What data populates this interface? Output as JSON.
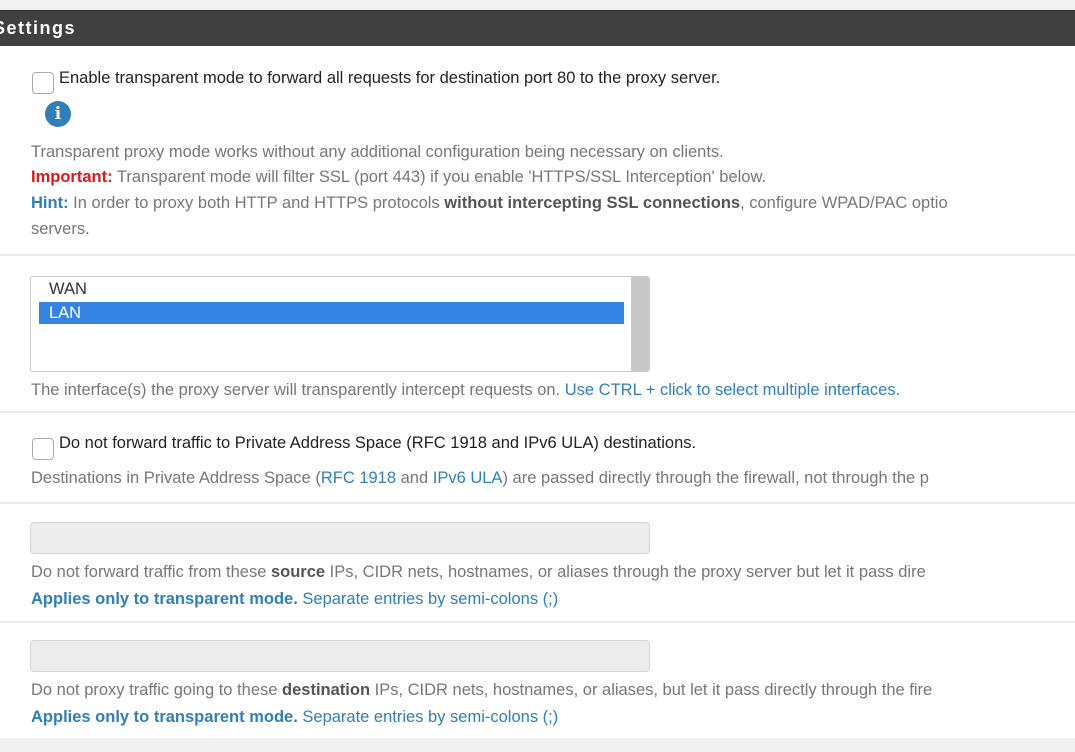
{
  "header": {
    "title": "Settings"
  },
  "transparent_mode": {
    "checkbox_label": "Enable transparent mode to forward all requests for destination port 80 to the proxy server.",
    "checked": false,
    "info_icon": "info-circle-icon",
    "help_line1": "Transparent proxy mode works without any additional configuration being necessary on clients.",
    "important_label": "Important:",
    "important_text": " Transparent mode will filter SSL (port 443) if you enable 'HTTPS/SSL Interception' below.",
    "hint_label": "Hint:",
    "hint_text1": " In order to proxy both HTTP and HTTPS protocols ",
    "hint_bold": "without intercepting SSL connections",
    "hint_text2": ", configure WPAD/PAC optio",
    "hint_line2": "servers."
  },
  "interfaces": {
    "options": [
      {
        "label": "WAN",
        "selected": false
      },
      {
        "label": "LAN",
        "selected": true
      }
    ],
    "help_text": "The interface(s) the proxy server will transparently intercept requests on. ",
    "help_link": "Use CTRL + click to select multiple interfaces."
  },
  "private_space": {
    "checkbox_label": "Do not forward traffic to Private Address Space (RFC 1918 and IPv6 ULA) destinations.",
    "checked": false,
    "help_a": "Destinations in Private Address Space (",
    "link_rfc": "RFC 1918",
    "help_b": " and ",
    "link_ipv6": "IPv6 ULA",
    "help_c": ") are passed directly through the firewall, not through the p"
  },
  "bypass_source": {
    "value": "",
    "help_a": "Do not forward traffic from these ",
    "help_bold": "source",
    "help_b": " IPs, CIDR nets, hostnames, or aliases through the proxy server but let it pass dire",
    "applies_bold": "Applies only to transparent mode.",
    "applies_text": " Separate entries by semi-colons (;)"
  },
  "bypass_destination": {
    "value": "",
    "help_a": "Do not proxy traffic going to these ",
    "help_bold": "destination",
    "help_b": " IPs, CIDR nets, hostnames, or aliases, but let it pass directly through the fire",
    "applies_bold": "Applies only to transparent mode.",
    "applies_text": " Separate entries by semi-colons (;)"
  },
  "colors": {
    "header_bg": "#404040",
    "important": "#d9191c",
    "link": "#2f7fb8",
    "selected": "#3584e4"
  }
}
